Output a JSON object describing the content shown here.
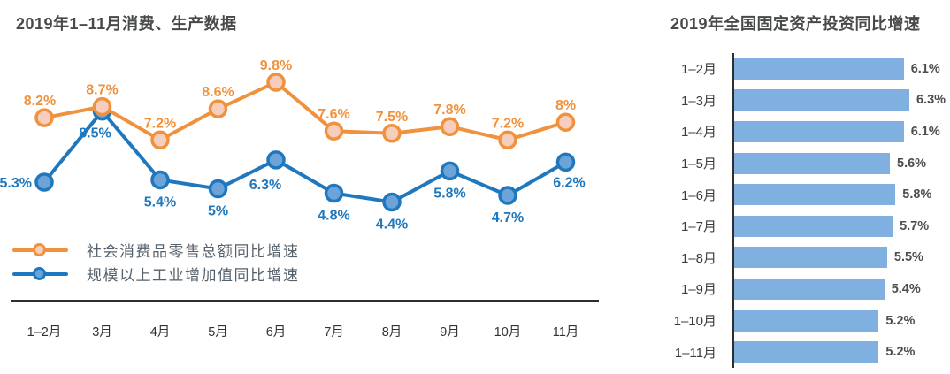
{
  "page": {
    "background": "#FFFFFF"
  },
  "colors": {
    "title_text": "#47494B",
    "axis_line": "#2E2E2E",
    "category_text": "#3A3C3E",
    "bar_value_text": "#4B4D4F",
    "legend_text": "#55616B",
    "orange": "#F0923D",
    "blue": "#1F78BE",
    "bar_blue": "#7FB0DF"
  },
  "chart_data": [
    {
      "type": "line",
      "title": "2019年1–11月消费、生产数据",
      "categories": [
        "1–2月",
        "3月",
        "4月",
        "5月",
        "6月",
        "7月",
        "8月",
        "9月",
        "10月",
        "11月"
      ],
      "series": [
        {
          "name": "社会消费品零售总额同比增速",
          "color": "#F0923D",
          "marker_fill": "#F7CEBD",
          "values": [
            8.2,
            8.7,
            7.2,
            8.6,
            9.8,
            7.6,
            7.5,
            7.8,
            7.2,
            8
          ],
          "labels": [
            "8.2%",
            "8.7%",
            "7.2%",
            "8.6%",
            "9.8%",
            "7.6%",
            "7.5%",
            "7.8%",
            "7.2%",
            "8%"
          ]
        },
        {
          "name": "规模以上工业增加值同比增速",
          "color": "#1F78BE",
          "marker_fill": "#6CA4DA",
          "values": [
            5.3,
            8.5,
            5.4,
            5,
            6.3,
            4.8,
            4.4,
            5.8,
            4.7,
            6.2
          ],
          "labels": [
            "5.3%",
            "8.5%",
            "5.4%",
            "5%",
            "6.3%",
            "4.8%",
            "4.4%",
            "5.8%",
            "4.7%",
            "6.2%"
          ]
        }
      ],
      "legend_position": "bottom-left",
      "grid": false,
      "ylim": [
        4,
        10.5
      ]
    },
    {
      "type": "bar",
      "orientation": "horizontal",
      "title": "2019年全国固定资产投资同比增速",
      "categories": [
        "1–2月",
        "1–3月",
        "1–4月",
        "1–5月",
        "1–6月",
        "1–7月",
        "1–8月",
        "1–9月",
        "1–10月",
        "1–11月"
      ],
      "values": [
        6.1,
        6.3,
        6.1,
        5.6,
        5.8,
        5.7,
        5.5,
        5.4,
        5.2,
        5.2
      ],
      "labels": [
        "6.1%",
        "6.3%",
        "6.1%",
        "5.6%",
        "5.8%",
        "5.7%",
        "5.5%",
        "5.4%",
        "5.2%",
        "5.2%"
      ],
      "bar_color": "#7FB0DF",
      "xlim": [
        0,
        6.3
      ],
      "grid": false
    }
  ]
}
